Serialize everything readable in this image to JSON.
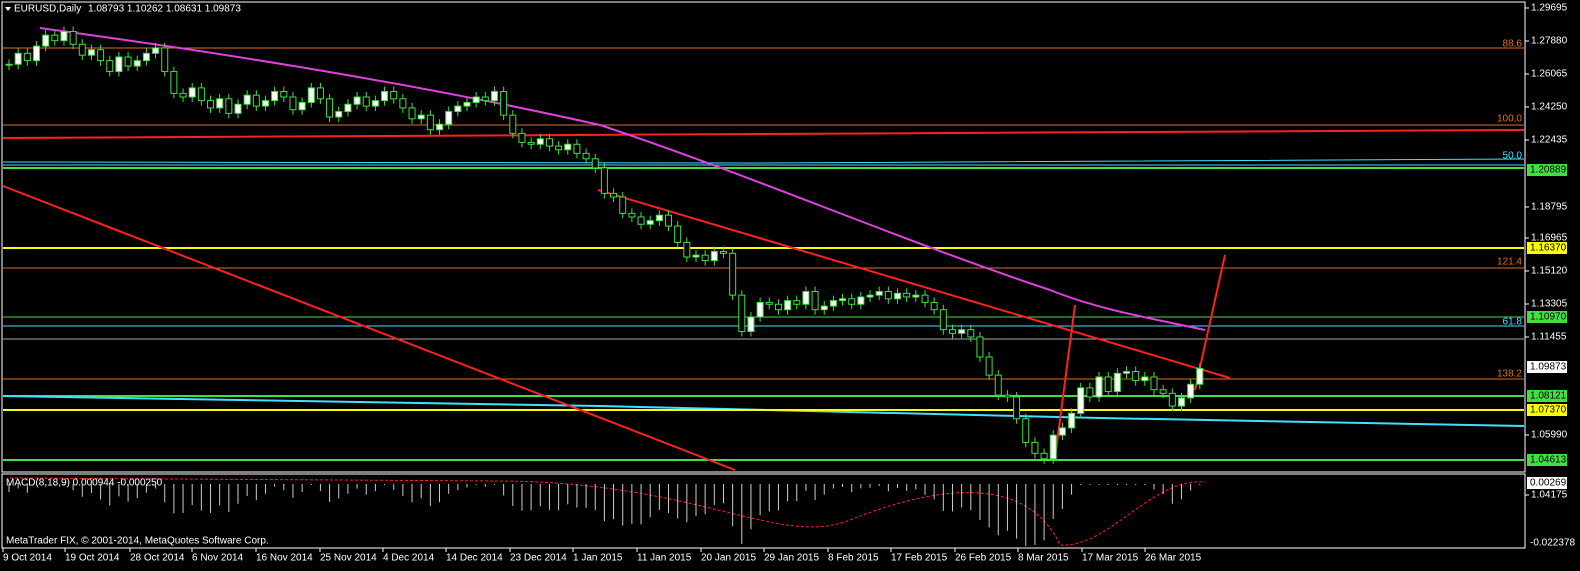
{
  "header": {
    "symbol": "EURUSD,Daily",
    "ohlc": "1.08793 1.10262 1.08631 1.09873"
  },
  "price_axis": [
    "1.29695",
    "1.27880",
    "1.26065",
    "1.24250",
    "1.22435",
    "1.18795",
    "1.16965",
    "1.15120",
    "1.13305",
    "1.11455",
    "1.05990",
    "1.04175"
  ],
  "level_boxes": [
    "1.20889",
    "1.16370",
    "1.10970",
    "1.09873",
    "1.08121",
    "1.07370",
    "1.04613"
  ],
  "fib_labels": [
    "88.6",
    "100.0",
    "50.0",
    "121.4",
    "61.8",
    "138.2"
  ],
  "macd": {
    "label": "MACD(8,18,9) 0.000944 -0.000250",
    "axis_top": "0.002692",
    "axis_bottom": "-0.022378"
  },
  "copyright": "MetaTrader FIX, © 2001-2014, MetaQuotes Software Corp.",
  "dates": [
    "9 Oct 2014",
    "19 Oct 2014",
    "28 Oct 2014",
    "6 Nov 2014",
    "16 Nov 2014",
    "25 Nov 2014",
    "4 Dec 2014",
    "14 Dec 2014",
    "23 Dec 2014",
    "1 Jan 2015",
    "11 Jan 2015",
    "20 Jan 2015",
    "29 Jan 2015",
    "8 Feb 2015",
    "17 Feb 2015",
    "26 Feb 2015",
    "8 Mar 2015",
    "17 Mar 2015",
    "26 Mar 2015"
  ],
  "closes": [
    1.266,
    1.272,
    1.268,
    1.276,
    1.282,
    1.279,
    1.284,
    1.277,
    1.271,
    1.274,
    1.268,
    1.262,
    1.27,
    1.265,
    1.268,
    1.272,
    1.275,
    1.262,
    1.25,
    1.248,
    1.253,
    1.246,
    1.242,
    1.247,
    1.239,
    1.244,
    1.249,
    1.243,
    1.246,
    1.251,
    1.248,
    1.241,
    1.245,
    1.253,
    1.247,
    1.237,
    1.24,
    1.244,
    1.248,
    1.243,
    1.246,
    1.251,
    1.247,
    1.242,
    1.236,
    1.238,
    1.23,
    1.233,
    1.24,
    1.243,
    1.245,
    1.248,
    1.246,
    1.251,
    1.238,
    1.228,
    1.223,
    1.222,
    1.225,
    1.221,
    1.219,
    1.222,
    1.217,
    1.214,
    1.209,
    1.195,
    1.193,
    1.184,
    1.182,
    1.178,
    1.18,
    1.183,
    1.177,
    1.168,
    1.16,
    1.161,
    1.158,
    1.163,
    1.162,
    1.139,
    1.119,
    1.127,
    1.135,
    1.134,
    1.131,
    1.136,
    1.134,
    1.141,
    1.131,
    1.133,
    1.136,
    1.137,
    1.134,
    1.138,
    1.139,
    1.141,
    1.137,
    1.14,
    1.138,
    1.139,
    1.135,
    1.131,
    1.12,
    1.118,
    1.12,
    1.116,
    1.105,
    1.095,
    1.084,
    1.083,
    1.071,
    1.058,
    1.052,
    1.049,
    1.062,
    1.066,
    1.074,
    1.088,
    1.083,
    1.094,
    1.086,
    1.096,
    1.097,
    1.092,
    1.094,
    1.087,
    1.085,
    1.078,
    1.0825,
    1.09,
    1.0987
  ]
}
